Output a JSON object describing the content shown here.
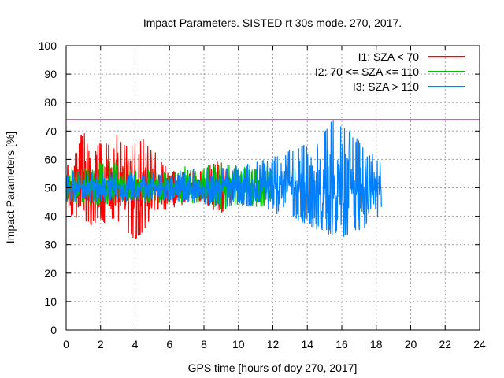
{
  "chart_data": {
    "type": "line",
    "title": "Impact Parameters. SISTED rt 30s mode. 270, 2017.",
    "xlabel": "GPS time [hours of doy 270, 2017]",
    "ylabel": "Impact Parameters [%]",
    "xlim": [
      0,
      24
    ],
    "ylim": [
      0,
      100
    ],
    "xticks": [
      "0",
      "2",
      "4",
      "6",
      "8",
      "10",
      "12",
      "14",
      "16",
      "18",
      "20",
      "22",
      "24"
    ],
    "yticks": [
      "0",
      "10",
      "20",
      "30",
      "40",
      "50",
      "60",
      "70",
      "80",
      "90",
      "100"
    ],
    "grid": true,
    "legend_position": "top-right",
    "threshold_line": {
      "y": 74,
      "color": "#a000c0"
    },
    "series": [
      {
        "name": "I1: SZA < 70",
        "color": "#ff0000",
        "x": [
          0,
          0.5,
          1,
          1.5,
          2,
          2.5,
          2.8,
          3,
          3.5,
          4,
          4.5,
          5,
          5.5,
          6,
          6.5,
          7,
          8,
          9,
          9.9
        ],
        "center": 50,
        "min": [
          41,
          39,
          38,
          36,
          39,
          36,
          40,
          37,
          35,
          31,
          35,
          40,
          42,
          42,
          44,
          44,
          45,
          40,
          46
        ],
        "max": [
          58,
          62,
          71,
          64,
          66,
          67,
          74,
          68,
          66,
          67,
          68,
          64,
          60,
          57,
          55,
          56,
          57,
          60,
          52
        ]
      },
      {
        "name": "I2: 70 <= SZA <= 110",
        "color": "#00c000",
        "x": [
          0,
          1,
          2,
          3,
          4,
          5,
          6,
          7,
          8,
          9,
          10,
          11,
          12
        ],
        "center": 50,
        "min": [
          43,
          44,
          44,
          45,
          45,
          44,
          45,
          45,
          44,
          42,
          43,
          43,
          44
        ],
        "max": [
          57,
          58,
          60,
          59,
          58,
          57,
          56,
          58,
          58,
          59,
          58,
          57,
          58
        ]
      },
      {
        "name": "I3: SZA > 110",
        "color": "#0080ff",
        "x": [
          0,
          1,
          2,
          3,
          4,
          5,
          6,
          7,
          8,
          9,
          10,
          11,
          12,
          13,
          14,
          15,
          15.6,
          16,
          17,
          18,
          18.3
        ],
        "center": 50,
        "min": [
          45,
          45,
          45,
          45,
          45,
          45,
          45,
          45,
          44,
          43,
          44,
          43,
          41,
          40,
          37,
          34,
          33,
          31,
          35,
          38,
          42
        ],
        "max": [
          56,
          56,
          56,
          56,
          56,
          56,
          56,
          57,
          58,
          59,
          58,
          59,
          61,
          64,
          66,
          70,
          76,
          73,
          67,
          62,
          59
        ]
      }
    ]
  }
}
